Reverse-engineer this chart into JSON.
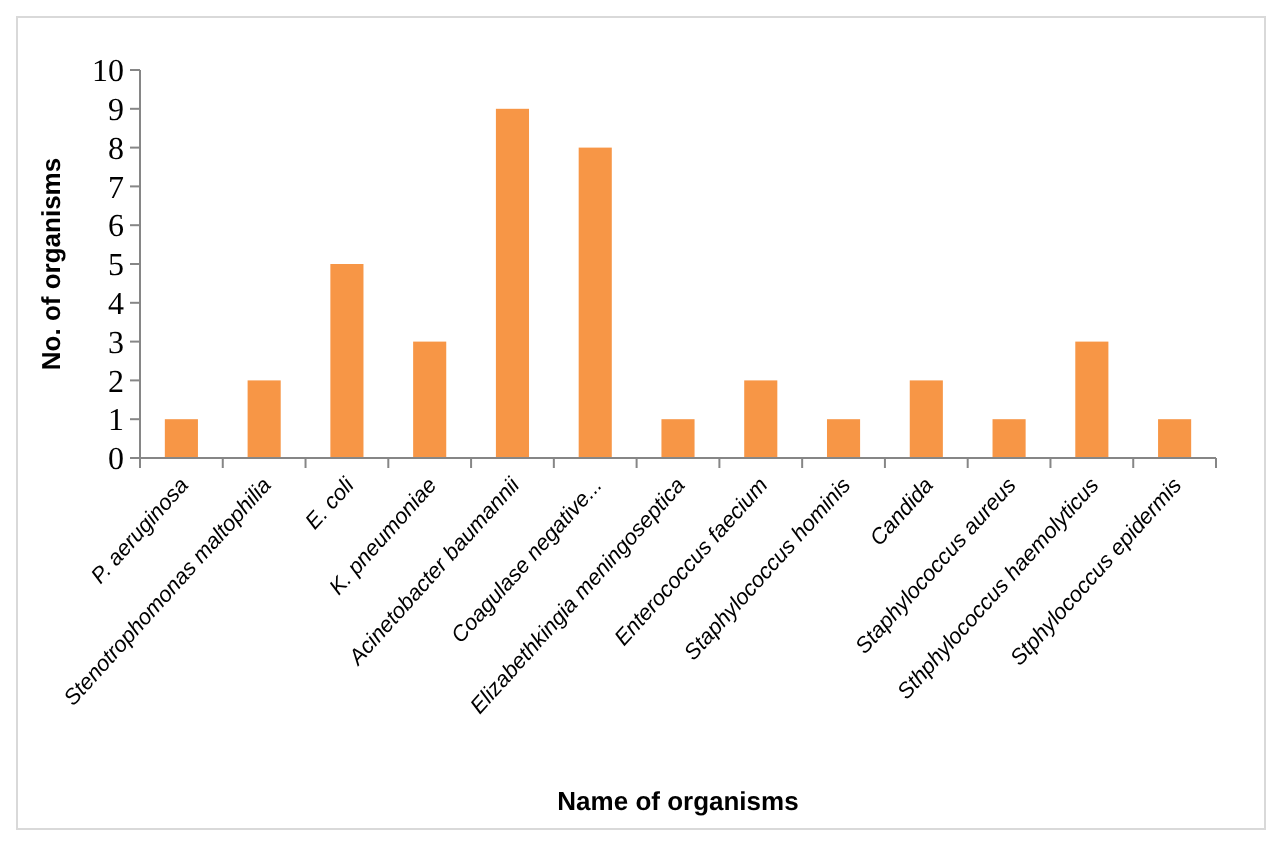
{
  "chart_data": {
    "type": "bar",
    "xlabel": "Name of organisms",
    "ylabel": "No. of organisms",
    "categories": [
      "P. aeruginosa",
      "Stenotrophomonas maltophilia",
      "E. coli",
      "K. pneumoniae",
      "Acinetobacter baumannii",
      "Coagulase negative...",
      "Elizabethkingia meningoseptica",
      "Enterococcus faecium",
      "Staphylococcus hominis",
      "Candida",
      "Staphylococcus aureus",
      "Sthphylococcus haemolyticus",
      "Stphylococcus epidermis"
    ],
    "values": [
      1,
      2,
      5,
      3,
      9,
      8,
      1,
      2,
      1,
      2,
      1,
      3,
      1
    ],
    "color": "#f79646",
    "ylim": [
      0,
      10
    ],
    "yticks": [
      0,
      1,
      2,
      3,
      4,
      5,
      6,
      7,
      8,
      9,
      10
    ],
    "grid": false
  }
}
